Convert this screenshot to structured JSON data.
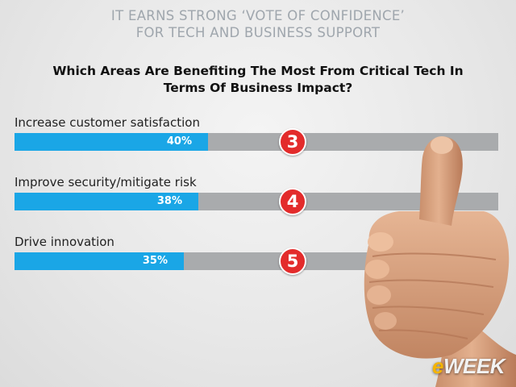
{
  "header": {
    "line1": "IT EARNS STRONG ‘VOTE OF CONFIDENCE’",
    "line2": "FOR TECH AND BUSINESS SUPPORT"
  },
  "logo": {
    "prefix": "e",
    "rest": "WEEK"
  },
  "colors": {
    "bar_fill": "#1aa6e6",
    "bar_track": "#a9abad",
    "rank_badge": "#e32b2b",
    "header_text": "#9fa6ad"
  },
  "icons": [
    "thumbs-up-hand-image",
    "rank-badge"
  ],
  "chart_data": {
    "type": "bar",
    "orientation": "horizontal",
    "title": [
      "Which Areas Are Benefiting The Most From Critical Tech In",
      "Terms Of Business Impact?"
    ],
    "categories": [
      "Increase customer satisfaction",
      "Improve security/mitigate risk",
      "Drive innovation"
    ],
    "values": [
      40,
      38,
      35
    ],
    "value_labels": [
      "40%",
      "38%",
      "35%"
    ],
    "ranks": [
      "3",
      "4",
      "5"
    ],
    "unit": "%",
    "xlim": [
      0,
      100
    ],
    "grid": false,
    "legend": "none"
  }
}
